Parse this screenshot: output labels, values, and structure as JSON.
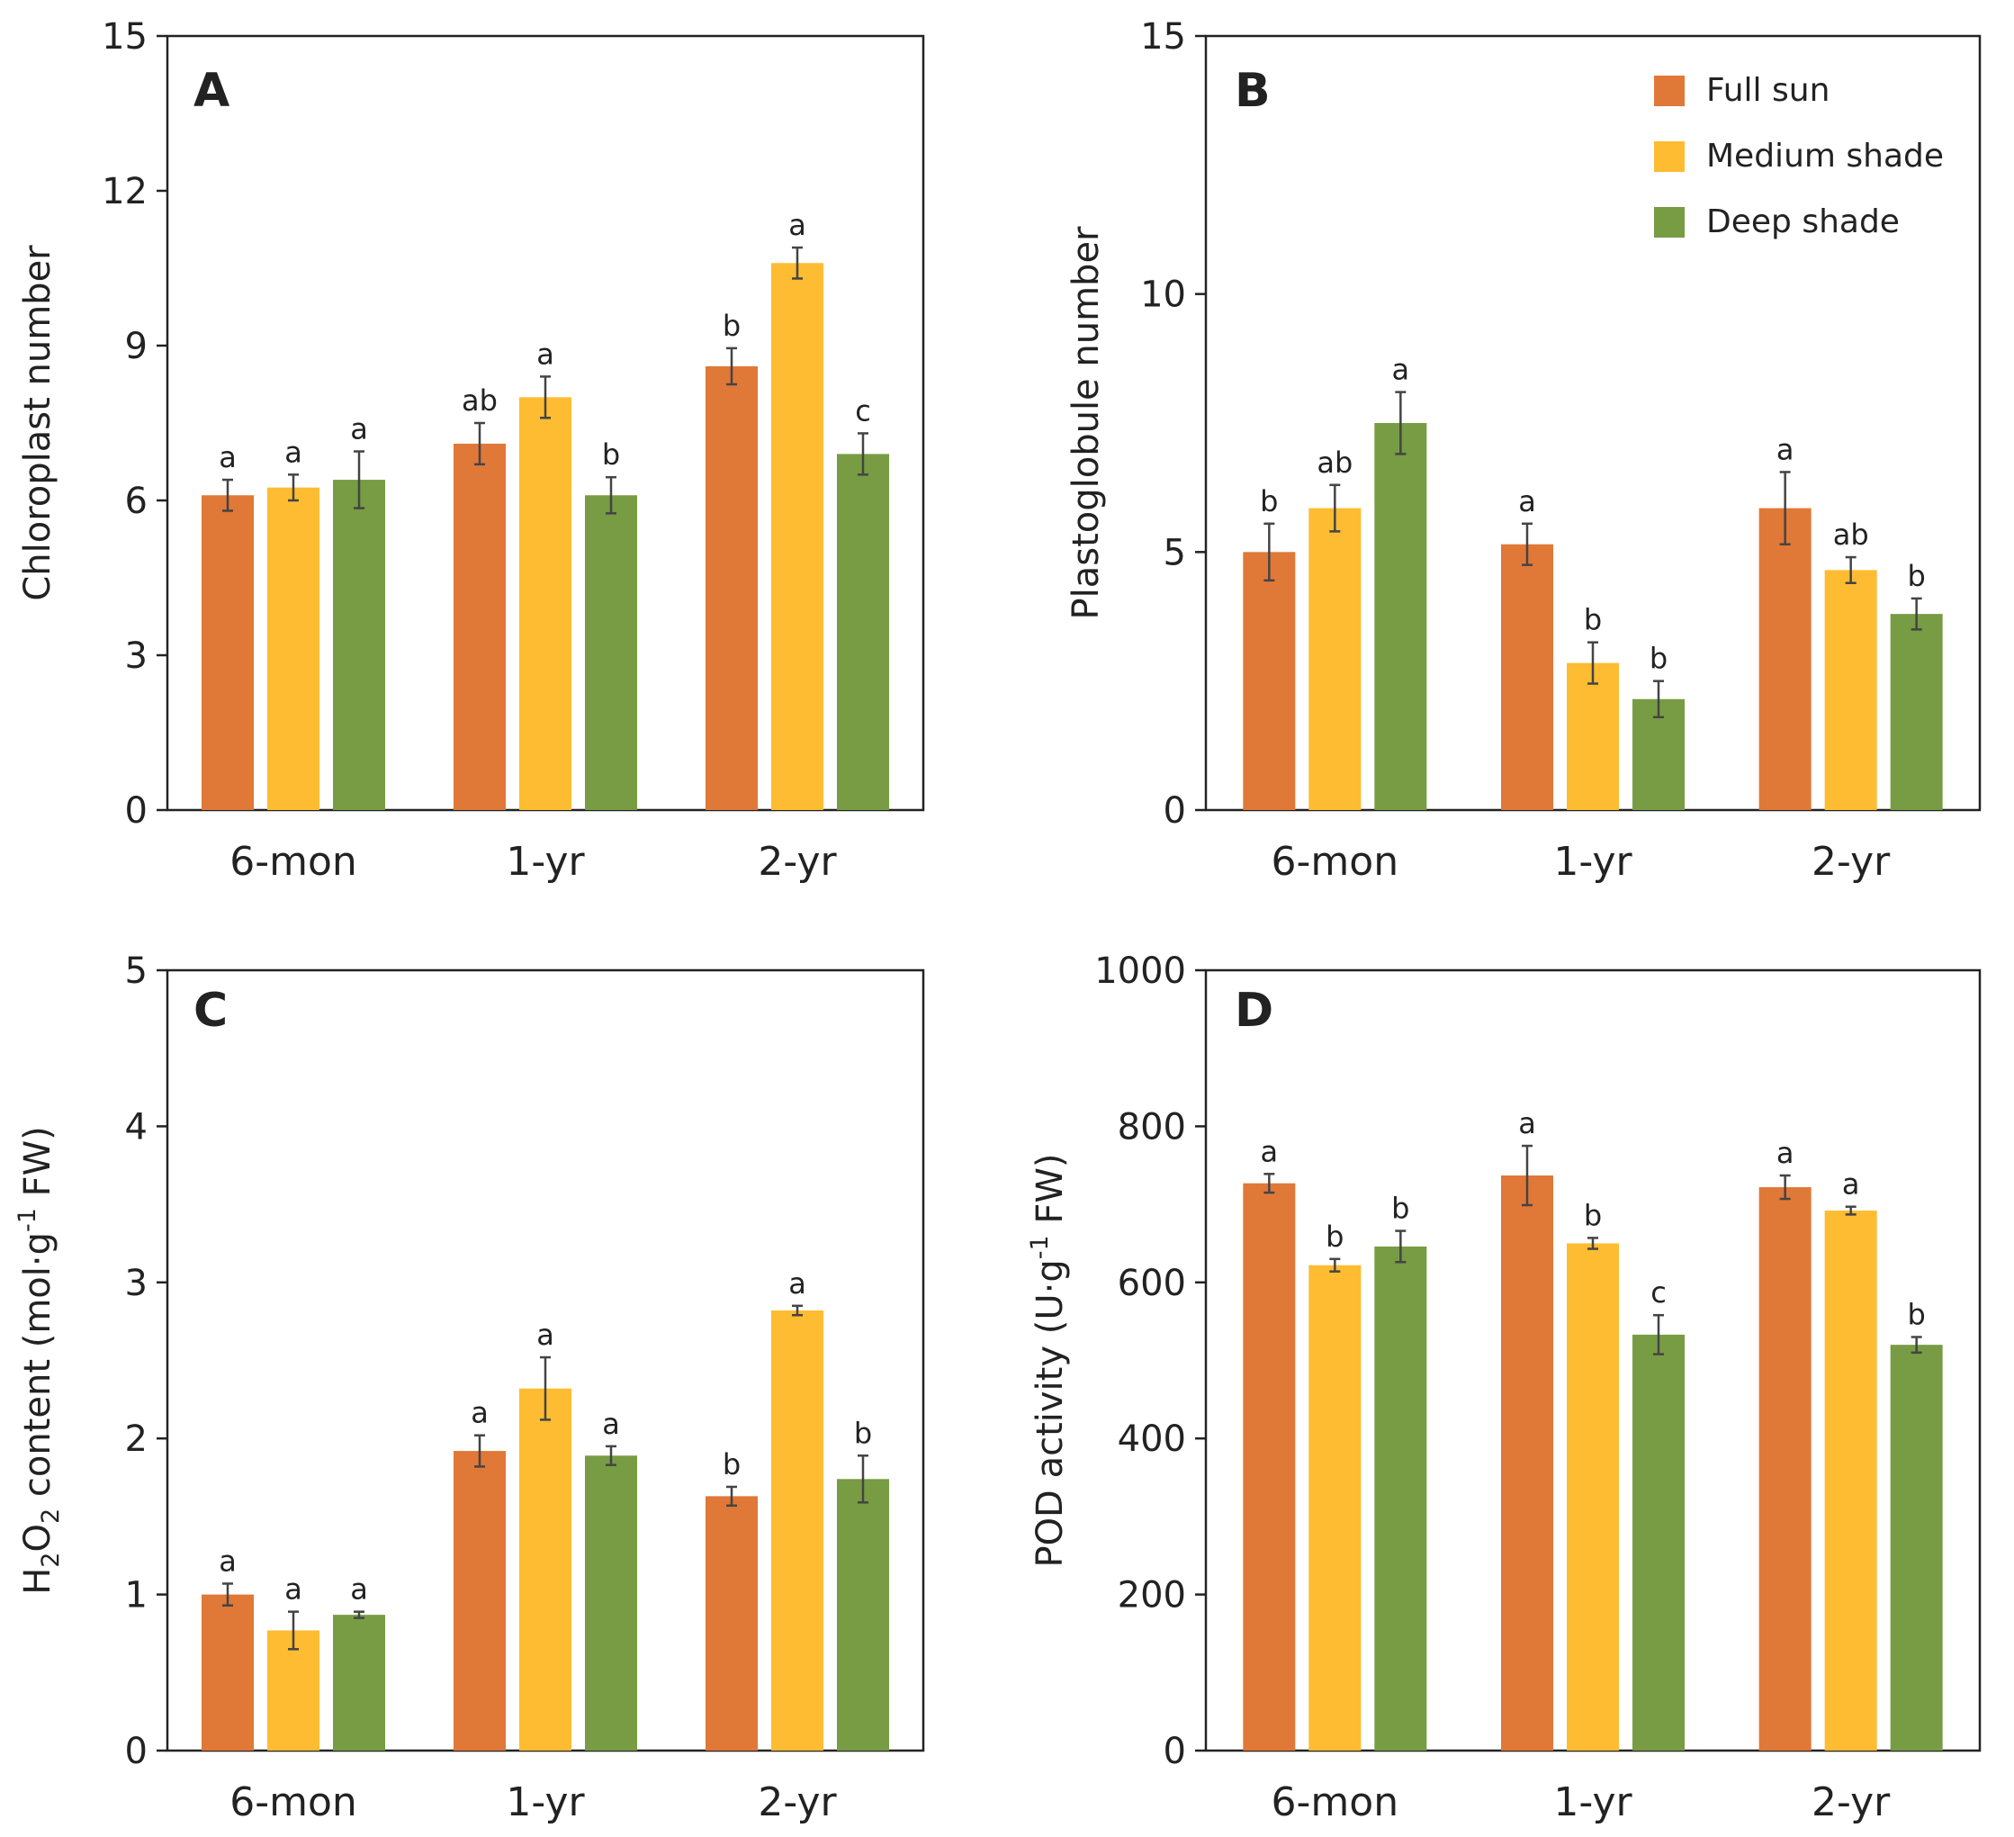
{
  "series_colors": {
    "Full sun": "#e07838",
    "Medium shade": "#fdbc32",
    "Deep shade": "#779c43"
  },
  "legend": [
    "Full sun",
    "Medium shade",
    "Deep shade"
  ],
  "chart_data": [
    {
      "panel": "A",
      "type": "bar",
      "ylabel": "Chloroplast number",
      "yticks": [
        "0",
        "3",
        "6",
        "9",
        "12",
        "15"
      ],
      "ylim": [
        0,
        15
      ],
      "categories": [
        "6-mon",
        "1-yr",
        "2-yr"
      ],
      "series": [
        {
          "name": "Full sun",
          "values": [
            6.1,
            7.1,
            8.6
          ],
          "errors": [
            0.3,
            0.4,
            0.35
          ],
          "letters": [
            "a",
            "ab",
            "b"
          ]
        },
        {
          "name": "Medium shade",
          "values": [
            6.25,
            8.0,
            10.6
          ],
          "errors": [
            0.25,
            0.4,
            0.3
          ],
          "letters": [
            "a",
            "a",
            "a"
          ]
        },
        {
          "name": "Deep shade",
          "values": [
            6.4,
            6.1,
            6.9
          ],
          "errors": [
            0.55,
            0.35,
            0.4
          ],
          "letters": [
            "a",
            "b",
            "c"
          ]
        }
      ]
    },
    {
      "panel": "B",
      "type": "bar",
      "ylabel": "Plastoglobule number",
      "yticks": [
        "0",
        "5",
        "10",
        "15"
      ],
      "ylim": [
        0,
        15
      ],
      "categories": [
        "6-mon",
        "1-yr",
        "2-yr"
      ],
      "series": [
        {
          "name": "Full sun",
          "values": [
            5.0,
            5.15,
            5.85
          ],
          "errors": [
            0.55,
            0.4,
            0.7
          ],
          "letters": [
            "b",
            "a",
            "a"
          ]
        },
        {
          "name": "Medium shade",
          "values": [
            5.85,
            2.85,
            4.65
          ],
          "errors": [
            0.45,
            0.4,
            0.25
          ],
          "letters": [
            "ab",
            "b",
            "ab"
          ]
        },
        {
          "name": "Deep shade",
          "values": [
            7.5,
            2.15,
            3.8
          ],
          "errors": [
            0.6,
            0.35,
            0.3
          ],
          "letters": [
            "a",
            "b",
            "b"
          ]
        }
      ]
    },
    {
      "panel": "C",
      "type": "bar",
      "ylabel_main": "H",
      "ylabel_sub1": "2",
      "ylabel_mid": "O",
      "ylabel_sub2": "2",
      "ylabel_rest": " content (mol·g",
      "ylabel_sup": "-1",
      "ylabel_end": " FW)",
      "yticks": [
        "0",
        "1",
        "2",
        "3",
        "4",
        "5"
      ],
      "ylim": [
        0,
        5
      ],
      "categories": [
        "6-mon",
        "1-yr",
        "2-yr"
      ],
      "series": [
        {
          "name": "Full sun",
          "values": [
            1.0,
            1.92,
            1.63
          ],
          "errors": [
            0.07,
            0.1,
            0.06
          ],
          "letters": [
            "a",
            "a",
            "b"
          ]
        },
        {
          "name": "Medium shade",
          "values": [
            0.77,
            2.32,
            2.82
          ],
          "errors": [
            0.12,
            0.2,
            0.03
          ],
          "letters": [
            "a",
            "a",
            "a"
          ]
        },
        {
          "name": "Deep shade",
          "values": [
            0.87,
            1.89,
            1.74
          ],
          "errors": [
            0.02,
            0.06,
            0.15
          ],
          "letters": [
            "a",
            "a",
            "b"
          ]
        }
      ]
    },
    {
      "panel": "D",
      "type": "bar",
      "ylabel_main": "POD activity (U·g",
      "ylabel_sup": "-1",
      "ylabel_end": " FW)",
      "yticks": [
        "0",
        "200",
        "400",
        "600",
        "800",
        "1000"
      ],
      "ylim": [
        0,
        1000
      ],
      "categories": [
        "6-mon",
        "1-yr",
        "2-yr"
      ],
      "series": [
        {
          "name": "Full sun",
          "values": [
            727,
            737,
            722
          ],
          "errors": [
            12,
            38,
            15
          ],
          "letters": [
            "a",
            "a",
            "a"
          ]
        },
        {
          "name": "Medium shade",
          "values": [
            622,
            650,
            692
          ],
          "errors": [
            8,
            7,
            5
          ],
          "letters": [
            "b",
            "b",
            "a"
          ]
        },
        {
          "name": "Deep shade",
          "values": [
            646,
            533,
            520
          ],
          "errors": [
            20,
            25,
            10
          ],
          "letters": [
            "b",
            "c",
            "b"
          ]
        }
      ]
    }
  ]
}
